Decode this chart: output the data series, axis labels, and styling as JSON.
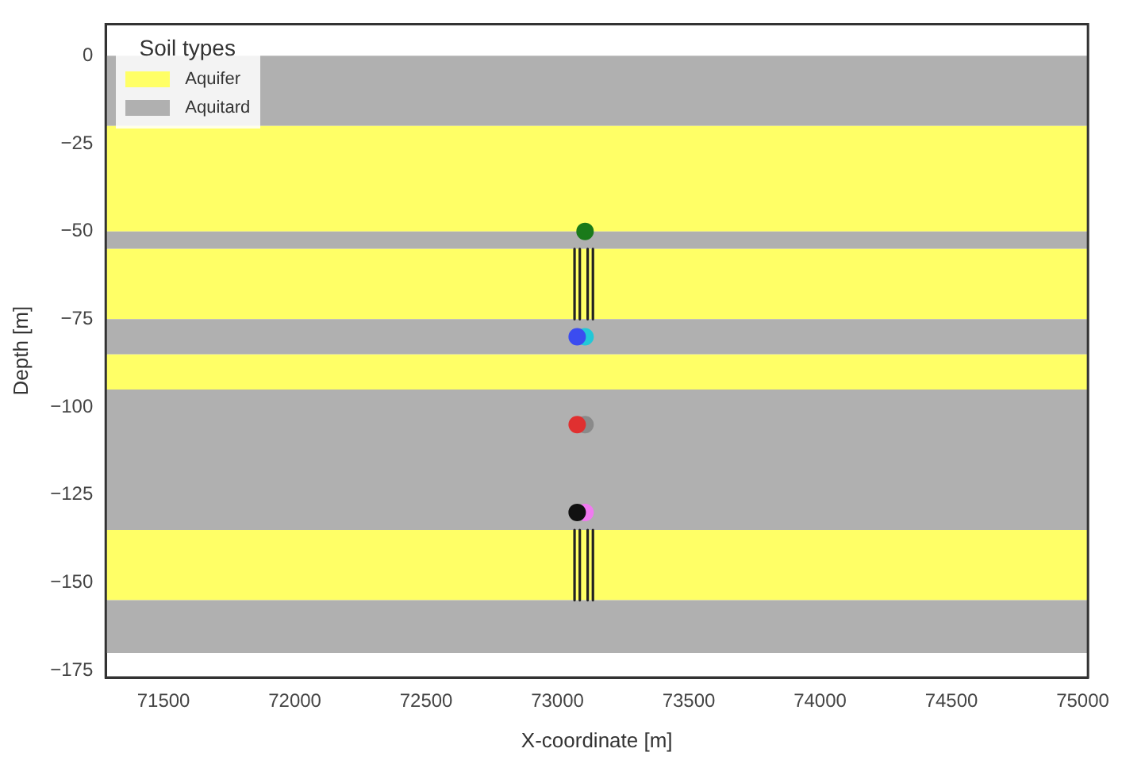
{
  "chart_data": {
    "type": "scatter",
    "xlabel": "X-coordinate [m]",
    "ylabel": "Depth [m]",
    "legend_title": "Soil types",
    "legend": "top left",
    "grid": false,
    "xlim": [
      71280,
      75020
    ],
    "ylim": [
      -177,
      9
    ],
    "xticks": [
      71500,
      72000,
      72500,
      73000,
      73500,
      74000,
      74500,
      75000
    ],
    "yticks": [
      0,
      -25,
      -50,
      -75,
      -100,
      -125,
      -150,
      -175
    ],
    "bands": [
      {
        "axis": "y",
        "from": 0,
        "to": -20,
        "color": "#b0b0b0"
      },
      {
        "axis": "y",
        "from": -20,
        "to": -50,
        "label": "Aquifer",
        "color": "#ffff66"
      },
      {
        "axis": "y",
        "from": -50,
        "to": -55,
        "label": "Aquitard",
        "color": "#b0b0b0"
      },
      {
        "axis": "y",
        "from": -55,
        "to": -75,
        "color": "#ffff66"
      },
      {
        "axis": "y",
        "from": -75,
        "to": -85,
        "color": "#b0b0b0"
      },
      {
        "axis": "y",
        "from": -85,
        "to": -95,
        "color": "#ffff66"
      },
      {
        "axis": "y",
        "from": -95,
        "to": -135,
        "color": "#b0b0b0"
      },
      {
        "axis": "y",
        "from": -135,
        "to": -155,
        "color": "#ffff66"
      },
      {
        "axis": "y",
        "from": -155,
        "to": -170,
        "color": "#b0b0b0"
      }
    ],
    "series": [
      {
        "marker": "circle",
        "color": "#1a7a1a",
        "x": [
          73105
        ],
        "values": [
          -50
        ]
      },
      {
        "marker": "circle",
        "color": "#3b4cf0",
        "x": [
          73075
        ],
        "values": [
          -80
        ]
      },
      {
        "marker": "circle",
        "color": "#22c8d8",
        "x": [
          73105
        ],
        "values": [
          -80
        ]
      },
      {
        "marker": "circle",
        "color": "#e03030",
        "x": [
          73075
        ],
        "values": [
          -105
        ]
      },
      {
        "marker": "circle",
        "color": "#8a8a8a",
        "x": [
          73105
        ],
        "values": [
          -105
        ]
      },
      {
        "marker": "circle",
        "color": "#111111",
        "x": [
          73075
        ],
        "values": [
          -130
        ]
      },
      {
        "marker": "circle",
        "color": "#f07af0",
        "x": [
          73105
        ],
        "values": [
          -130
        ]
      },
      {
        "type": "line",
        "marker": "none",
        "color": "#222222",
        "x": [
          73065,
          73065
        ],
        "values": [
          -55,
          -75
        ]
      },
      {
        "type": "line",
        "marker": "none",
        "color": "#222222",
        "x": [
          73085,
          73085
        ],
        "values": [
          -55,
          -75
        ]
      },
      {
        "type": "line",
        "marker": "none",
        "color": "#222222",
        "x": [
          73115,
          73115
        ],
        "values": [
          -55,
          -75
        ]
      },
      {
        "type": "line",
        "marker": "none",
        "color": "#222222",
        "x": [
          73135,
          73135
        ],
        "values": [
          -55,
          -75
        ]
      },
      {
        "type": "line",
        "marker": "none",
        "color": "#222222",
        "x": [
          73065,
          73065
        ],
        "values": [
          -135,
          -155
        ]
      },
      {
        "type": "line",
        "marker": "none",
        "color": "#222222",
        "x": [
          73085,
          73085
        ],
        "values": [
          -135,
          -155
        ]
      },
      {
        "type": "line",
        "marker": "none",
        "color": "#222222",
        "x": [
          73115,
          73115
        ],
        "values": [
          -135,
          -155
        ]
      },
      {
        "type": "line",
        "marker": "none",
        "color": "#222222",
        "x": [
          73135,
          73135
        ],
        "values": [
          -135,
          -155
        ]
      }
    ]
  }
}
